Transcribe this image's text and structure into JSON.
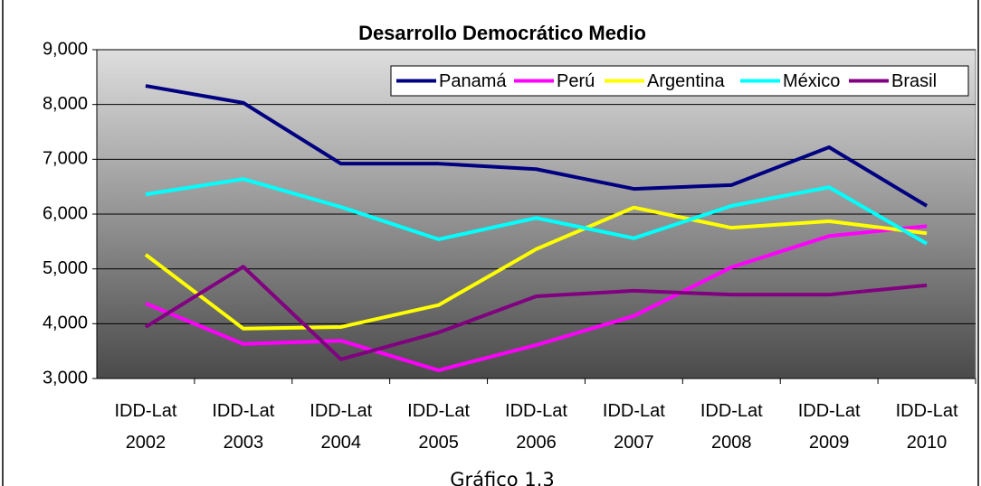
{
  "chart_data": {
    "type": "line",
    "title": "Desarrollo Democrático Medio",
    "caption": "Gráfico 1.3",
    "categories": [
      "IDD-Lat 2002",
      "IDD-Lat 2003",
      "IDD-Lat 2004",
      "IDD-Lat 2005",
      "IDD-Lat 2006",
      "IDD-Lat 2007",
      "IDD-Lat 2008",
      "IDD-Lat 2009",
      "IDD-Lat 2010"
    ],
    "series": [
      {
        "name": "Panamá",
        "color": "#000080",
        "values": [
          8340,
          8030,
          6920,
          6920,
          6820,
          6460,
          6530,
          7220,
          6150
        ]
      },
      {
        "name": "Perú",
        "color": "#ff00ff",
        "values": [
          4370,
          3630,
          3690,
          3150,
          3610,
          4140,
          5030,
          5600,
          5780
        ]
      },
      {
        "name": "Argentina",
        "color": "#ffff00",
        "values": [
          5260,
          3910,
          3940,
          4340,
          5360,
          6120,
          5750,
          5870,
          5650
        ]
      },
      {
        "name": "México",
        "color": "#00ffff",
        "values": [
          6360,
          6640,
          6130,
          5540,
          5930,
          5560,
          6150,
          6490,
          5460
        ]
      },
      {
        "name": "Brasil",
        "color": "#800080",
        "values": [
          3940,
          5040,
          3350,
          3840,
          4500,
          4600,
          4530,
          4530,
          4700
        ]
      }
    ],
    "ylim": [
      3000,
      9000
    ],
    "yticks": [
      {
        "value": 3000,
        "label": "3,000"
      },
      {
        "value": 4000,
        "label": "4,000"
      },
      {
        "value": 5000,
        "label": "5,000"
      },
      {
        "value": 6000,
        "label": "6,000"
      },
      {
        "value": 7000,
        "label": "7,000"
      },
      {
        "value": 8000,
        "label": "8,000"
      },
      {
        "value": 9000,
        "label": "9,000"
      }
    ],
    "grid": true,
    "legend": "top-right"
  }
}
